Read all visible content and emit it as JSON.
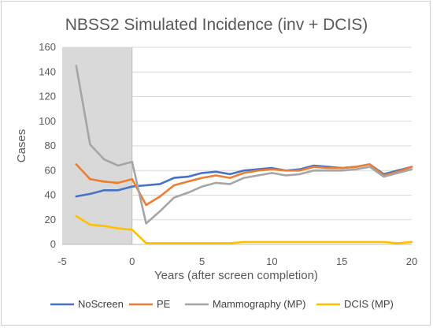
{
  "chart_data": {
    "type": "line",
    "title": "NBSS2 Simulated Incidence (inv + DCIS)",
    "xlabel": "Years  (after screen completion)",
    "ylabel": "Cases",
    "xlim": [
      -5,
      20
    ],
    "ylim": [
      0,
      160
    ],
    "x_ticks": [
      -5,
      0,
      5,
      10,
      15,
      20
    ],
    "y_ticks": [
      0,
      20,
      40,
      60,
      80,
      100,
      120,
      140,
      160
    ],
    "shaded_region": [
      -5,
      0
    ],
    "grid": "horizontal",
    "legend_position": "bottom",
    "x": [
      -4,
      -3,
      -2,
      -1,
      0,
      1,
      2,
      3,
      4,
      5,
      6,
      7,
      8,
      9,
      10,
      11,
      12,
      13,
      14,
      15,
      16,
      17,
      18,
      19,
      20
    ],
    "series": [
      {
        "name": "NoScreen",
        "color": "#4472c4",
        "values": [
          39,
          41,
          44,
          44,
          47,
          48,
          49,
          54,
          55,
          58,
          59,
          57,
          60,
          61,
          62,
          60,
          61,
          64,
          63,
          62,
          63,
          65,
          57,
          60,
          63
        ]
      },
      {
        "name": "PE",
        "color": "#ed7d31",
        "values": [
          65,
          53,
          51,
          50,
          53,
          32,
          39,
          48,
          51,
          54,
          56,
          54,
          58,
          60,
          61,
          60,
          60,
          63,
          62,
          62,
          63,
          65,
          56,
          59,
          63
        ]
      },
      {
        "name": "Mammography (MP)",
        "color": "#a5a5a5",
        "values": [
          145,
          81,
          69,
          64,
          67,
          17,
          27,
          38,
          42,
          47,
          50,
          49,
          54,
          56,
          58,
          56,
          57,
          60,
          60,
          60,
          61,
          63,
          55,
          58,
          61
        ]
      },
      {
        "name": "DCIS (MP)",
        "color": "#ffc000",
        "values": [
          23,
          16,
          15,
          13,
          12,
          1,
          1,
          1,
          1,
          1,
          1,
          1,
          2,
          2,
          2,
          2,
          2,
          2,
          2,
          2,
          2,
          2,
          2,
          1,
          2
        ]
      }
    ]
  }
}
